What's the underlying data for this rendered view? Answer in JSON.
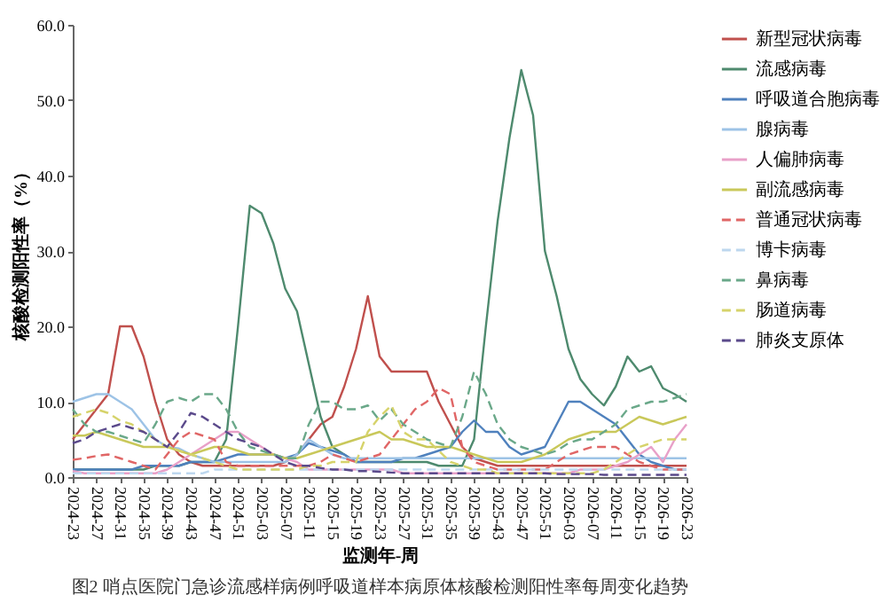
{
  "chart_data": {
    "type": "line",
    "ylabel": "核酸检测阳性率（%）",
    "xlabel": "监测年-周",
    "annotations": [
      "图2 哨点医院门急诊流感样病例呼吸道样本病原体核酸检测阳性率每周变化趋势"
    ],
    "categories": [
      "2024-23",
      null,
      "2024-27",
      null,
      "2024-31",
      null,
      "2024-35",
      null,
      "2024-39",
      null,
      "2024-43",
      null,
      "2024-47",
      null,
      "2024-51",
      null,
      "2025-03",
      null,
      "2025-07",
      null,
      "2025-11",
      null,
      "2025-15",
      null,
      "2025-19",
      null,
      "2025-23",
      null,
      "2025-27",
      null,
      "2025-31",
      null,
      "2025-35",
      null,
      "2025-39",
      null,
      "2025-43",
      null,
      "2025-47",
      null,
      "2025-51",
      null,
      "2026-03",
      null,
      "2026-07",
      null,
      "2026-11",
      null,
      "2026-15",
      null,
      "2026-19",
      null,
      "2026-23"
    ],
    "ylim": [
      0,
      60
    ],
    "yticks": [
      {
        "value": 0,
        "label": "0.0"
      },
      {
        "value": 10,
        "label": "10.0"
      },
      {
        "value": 20,
        "label": "20.0"
      },
      {
        "value": 30,
        "label": "30.0"
      },
      {
        "value": 40,
        "label": "40.0"
      },
      {
        "value": 50,
        "label": "50.0"
      },
      {
        "value": 60,
        "label": "60.0"
      }
    ],
    "grid": false,
    "legend": "right",
    "marker": "none",
    "series": [
      {
        "name": "新型冠状病毒",
        "color": "#c0504d",
        "line_style": "solid",
        "values": [
          5,
          7,
          9,
          11,
          20,
          20,
          16,
          10,
          5,
          3,
          2,
          1.5,
          1.5,
          1.5,
          1.5,
          1.5,
          1.5,
          1.5,
          2,
          3,
          5,
          7,
          8,
          12,
          17,
          24,
          16,
          14,
          14,
          14,
          14,
          10,
          7,
          4,
          2.5,
          2,
          1.5,
          1.5,
          1.5,
          1.5,
          1.5,
          1.5,
          1.5,
          1.5,
          1.5,
          1.5,
          1.5,
          1.5,
          1.5,
          1.5,
          1.5,
          1.5,
          1.5
        ]
      },
      {
        "name": "流感病毒",
        "color": "#4e8a6e",
        "line_style": "solid",
        "values": [
          1,
          1,
          1,
          1,
          1,
          1,
          1,
          1.5,
          1.5,
          1.5,
          2,
          2,
          2,
          5,
          20,
          36,
          35,
          31,
          25,
          22,
          15,
          8,
          4,
          3,
          2,
          2,
          2,
          2,
          2,
          2,
          2,
          1.5,
          1.5,
          1.5,
          5,
          20,
          34,
          45,
          54,
          48,
          30,
          24,
          17,
          13,
          11,
          9.5,
          12,
          16,
          14,
          14.7,
          11.8,
          11,
          10
        ]
      },
      {
        "name": "呼吸道合胞病毒",
        "color": "#4f81bd",
        "line_style": "solid",
        "values": [
          1,
          1,
          1,
          1,
          1,
          1,
          1.5,
          1.5,
          1.5,
          1.5,
          2,
          2,
          2,
          2.5,
          3,
          3,
          3,
          3,
          2.5,
          3,
          4.5,
          4,
          3.5,
          3,
          2,
          2,
          2,
          2,
          2.5,
          2.5,
          3,
          3.5,
          4,
          6,
          7.5,
          6,
          6,
          4,
          3,
          3.5,
          4,
          7,
          10,
          10,
          9,
          8,
          7,
          5,
          3,
          2,
          1.5,
          1,
          1
        ]
      },
      {
        "name": "腺病毒",
        "color": "#9dc3e6",
        "line_style": "solid",
        "values": [
          10,
          10.5,
          11,
          11,
          10,
          9,
          7,
          5,
          4,
          3.8,
          3,
          2.5,
          2,
          2,
          2,
          2,
          2,
          2,
          2,
          3,
          5,
          4,
          3,
          2.5,
          2.5,
          2.5,
          2.5,
          2.5,
          2.5,
          2.5,
          2.5,
          2.5,
          2.5,
          2.5,
          2.5,
          2.5,
          2.5,
          2.5,
          2.5,
          2.5,
          2.5,
          2.5,
          2.5,
          2.5,
          2.5,
          2.5,
          2.5,
          2.5,
          2.5,
          2.5,
          2.5,
          2.5,
          2.5
        ]
      },
      {
        "name": "人偏肺病毒",
        "color": "#e8a0c8",
        "line_style": "solid",
        "values": [
          0.8,
          0.5,
          0.5,
          0.5,
          0.5,
          0.5,
          0.5,
          0.5,
          1,
          2,
          3,
          4,
          5,
          6,
          6,
          5,
          4,
          3,
          2.5,
          2,
          1,
          1,
          1,
          1,
          1,
          1,
          1,
          1,
          0.5,
          0.5,
          0.5,
          0.5,
          0.5,
          0.5,
          0.5,
          0.5,
          0.5,
          0.5,
          0.5,
          0.5,
          0.5,
          0.5,
          0.5,
          1,
          1,
          1,
          1.5,
          2,
          3,
          4,
          2,
          5,
          7
        ]
      },
      {
        "name": "副流感病毒",
        "color": "#c9c85a",
        "line_style": "solid",
        "values": [
          5.5,
          5.5,
          6,
          5.5,
          5,
          4.5,
          4,
          4,
          4,
          3.5,
          3,
          3.5,
          4,
          4,
          3.5,
          3,
          3,
          3,
          2.5,
          2.5,
          3,
          3.5,
          4,
          4.5,
          5,
          5.5,
          6,
          5,
          5,
          4.5,
          4,
          4,
          4,
          3.5,
          3,
          2.5,
          2,
          2,
          2,
          2.5,
          3,
          4,
          5,
          5.5,
          6,
          6,
          6,
          7,
          8,
          7.5,
          7,
          7.5,
          8
        ]
      },
      {
        "name": "普通冠状病毒",
        "color": "#e06666",
        "line_style": "dashed",
        "values": [
          2.3,
          2.5,
          2.8,
          3,
          2.5,
          2,
          1.5,
          1,
          3,
          5,
          6,
          5.5,
          5,
          2,
          1.5,
          1.5,
          1.5,
          1.5,
          1.5,
          1.5,
          1.5,
          2,
          3,
          2.5,
          2,
          2.5,
          3,
          5,
          7,
          9,
          10,
          11.8,
          11,
          4,
          2,
          1.5,
          1,
          1,
          1,
          1,
          1,
          2,
          3,
          3.5,
          4,
          4,
          4,
          3,
          2,
          1.5,
          1,
          1,
          1
        ]
      },
      {
        "name": "博卡病毒",
        "color": "#bdd7ee",
        "line_style": "dashed",
        "values": [
          0.5,
          0.5,
          0.5,
          0.5,
          0.5,
          0.5,
          0.5,
          0.5,
          0.5,
          0.5,
          0.5,
          0.5,
          1,
          1,
          1,
          1,
          1,
          1,
          1,
          1,
          1,
          1,
          1,
          1,
          1,
          1,
          1,
          1,
          1,
          1,
          1,
          1,
          1,
          1,
          1,
          1,
          1,
          1,
          1,
          1,
          1,
          1,
          1,
          1,
          1,
          1,
          1,
          1,
          1,
          1,
          1,
          1,
          1
        ]
      },
      {
        "name": "鼻病毒",
        "color": "#6aa889",
        "line_style": "dashed",
        "values": [
          9,
          7,
          6,
          6,
          5.5,
          5,
          4.5,
          7,
          10,
          10.5,
          10,
          11,
          11,
          9,
          6,
          4,
          3.5,
          3,
          2.5,
          2.5,
          7,
          10,
          10,
          9,
          9,
          9.5,
          7.5,
          9,
          7,
          6,
          5,
          4.5,
          4,
          8,
          14,
          11,
          7,
          5,
          4,
          3.5,
          3,
          3.5,
          4.5,
          5,
          5,
          6,
          7,
          9,
          9.5,
          10,
          10,
          10.5,
          11
        ]
      },
      {
        "name": "肠道病毒",
        "color": "#d6d36b",
        "line_style": "dashed",
        "values": [
          8,
          8.5,
          9,
          8.5,
          7.5,
          7,
          6,
          5,
          4,
          3.5,
          3,
          2.5,
          2,
          1.5,
          1,
          1,
          1,
          1,
          1,
          1,
          1.5,
          1.5,
          2,
          2,
          2,
          6,
          8,
          9.5,
          6,
          5,
          5,
          3.5,
          2,
          1.5,
          1,
          1,
          0.5,
          0.5,
          0.5,
          0.5,
          0.5,
          0.5,
          0.5,
          0.5,
          0.5,
          1,
          2,
          3,
          4,
          4.5,
          5,
          5,
          5
        ]
      },
      {
        "name": "肺炎支原体",
        "color": "#5b4a8b",
        "line_style": "dashed",
        "values": [
          4.5,
          5,
          6,
          6.5,
          7,
          6.5,
          6,
          5,
          4,
          6,
          8.5,
          8,
          7,
          6,
          5,
          4.5,
          4,
          3,
          2,
          1.5,
          1.5,
          1.2,
          1,
          1,
          0.8,
          0.8,
          0.7,
          0.6,
          0.5,
          0.5,
          0.5,
          0.5,
          0.5,
          0.5,
          0.5,
          0.5,
          0.5,
          0.5,
          0.5,
          0.5,
          0.5,
          0.4,
          0.4,
          0.4,
          0.4,
          0.3,
          0.3,
          0.3,
          0.3,
          0.3,
          0.3,
          0.3,
          0.3
        ]
      }
    ]
  }
}
